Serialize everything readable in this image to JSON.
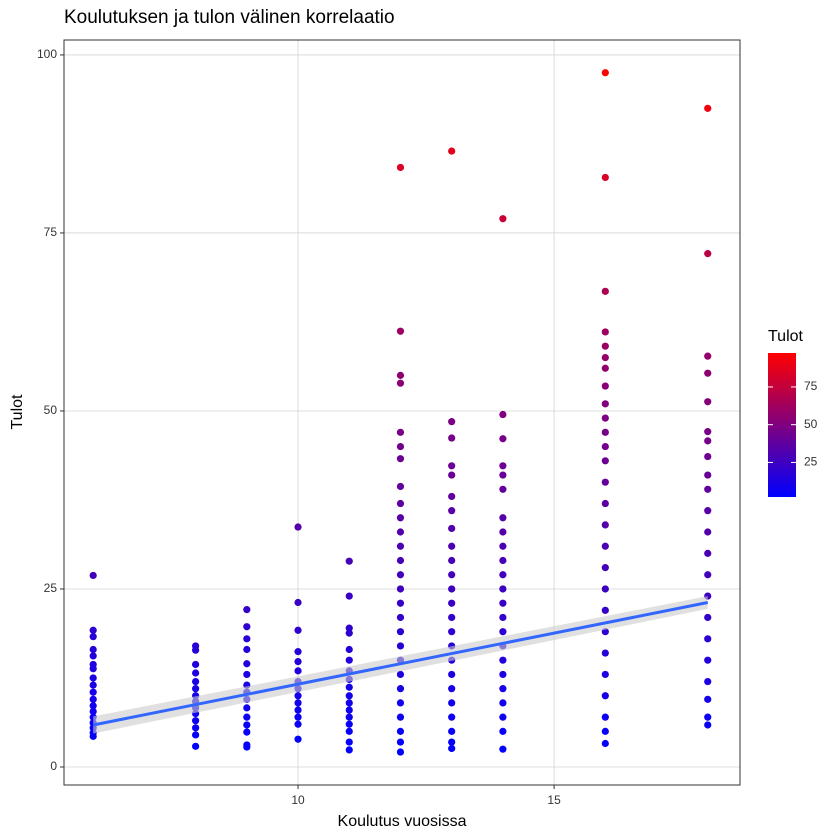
{
  "chart_data": {
    "type": "scatter",
    "title": "Koulutuksen ja tulon välinen korrelaatio",
    "x_label": "Koulutus vuosissa",
    "y_label": "Tulot",
    "legend_title": "Tulot",
    "xlim": [
      5.43,
      18.63
    ],
    "ylim": [
      -2.53,
      102.1
    ],
    "xticks": [
      10,
      15
    ],
    "yticks": [
      0,
      25,
      50,
      75,
      100
    ],
    "grid": true,
    "color_scale": {
      "low": "#0000ff",
      "high": "#ff0000",
      "limits": [
        2.1,
        97.5
      ],
      "ticks": [
        25,
        50,
        75
      ]
    },
    "groups": [
      {
        "x": 6,
        "values": [
          26.9,
          19.2,
          18.3,
          16.5,
          15.6,
          14.4,
          13.8,
          12.5,
          11.5,
          10.5,
          9.5,
          8.6,
          7.8,
          7.0,
          6.2,
          5.5,
          4.8,
          4.3
        ]
      },
      {
        "x": 8,
        "values": [
          17.0,
          16.4,
          14.4,
          13.2,
          12.0,
          11.0,
          10.0,
          9.2,
          8.3,
          7.5,
          6.5,
          5.5,
          4.5,
          2.9
        ]
      },
      {
        "x": 9,
        "values": [
          22.1,
          19.7,
          18.0,
          16.5,
          14.5,
          13.0,
          11.5,
          10.5,
          9.5,
          8.3,
          7.0,
          5.9,
          4.9,
          3.1,
          2.8
        ]
      },
      {
        "x": 10,
        "values": [
          33.7,
          23.1,
          19.2,
          16.2,
          14.8,
          13.5,
          12.0,
          11.0,
          10.0,
          9.0,
          8.0,
          7.0,
          6.0,
          3.9
        ]
      },
      {
        "x": 11,
        "values": [
          28.9,
          24.0,
          19.5,
          18.8,
          16.5,
          15.0,
          13.5,
          12.3,
          11.2,
          10.0,
          9.0,
          8.0,
          7.0,
          6.0,
          5.0,
          3.5,
          2.4
        ]
      },
      {
        "x": 12,
        "values": [
          84.2,
          61.2,
          55.0,
          53.9,
          47.0,
          45.0,
          43.3,
          39.4,
          37.0,
          35.0,
          33.0,
          31.0,
          29.0,
          27.0,
          25.0,
          23.0,
          21.0,
          19.0,
          17.0,
          15.0,
          13.0,
          11.0,
          9.0,
          7.0,
          5.0,
          3.5,
          2.1
        ]
      },
      {
        "x": 13,
        "values": [
          86.5,
          48.5,
          46.2,
          42.3,
          41.0,
          38.0,
          36.0,
          33.5,
          31.0,
          29.0,
          27.0,
          25.0,
          23.0,
          21.0,
          19.0,
          17.0,
          15.0,
          13.0,
          11.0,
          9.0,
          7.0,
          5.0,
          3.5,
          2.6
        ]
      },
      {
        "x": 14,
        "values": [
          77.0,
          49.5,
          46.1,
          42.3,
          41.0,
          39.0,
          35.0,
          33.0,
          31.0,
          29.0,
          27.0,
          25.0,
          23.0,
          21.0,
          19.0,
          17.0,
          15.0,
          13.0,
          11.0,
          9.0,
          7.0,
          5.0,
          2.5
        ]
      },
      {
        "x": 16,
        "values": [
          97.5,
          82.8,
          66.8,
          61.1,
          59.1,
          57.5,
          56.0,
          53.5,
          51.0,
          49.0,
          47.0,
          45.0,
          43.0,
          40.0,
          37.0,
          34.0,
          31.0,
          28.0,
          25.0,
          22.0,
          19.0,
          16.0,
          13.0,
          10.0,
          7.0,
          5.0,
          3.3
        ]
      },
      {
        "x": 18,
        "values": [
          92.5,
          72.1,
          57.7,
          55.3,
          51.3,
          47.1,
          45.8,
          43.6,
          41.0,
          39.0,
          36.0,
          33.0,
          30.0,
          27.0,
          24.0,
          21.0,
          18.0,
          15.0,
          12.0,
          9.5,
          7.0,
          5.9
        ]
      }
    ],
    "trend": {
      "color": "#3366ff",
      "band_color": "#cccccc",
      "x": [
        6,
        18
      ],
      "y": [
        5.9,
        23.1
      ],
      "lower": [
        4.7,
        22.2
      ],
      "upper": [
        7.1,
        24.0
      ]
    }
  }
}
